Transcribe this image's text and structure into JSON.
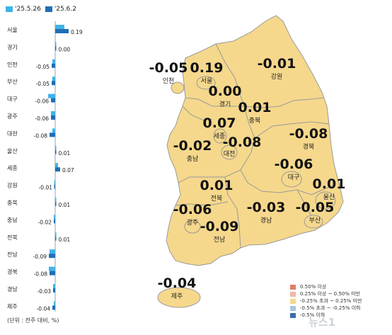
{
  "legend": {
    "series": [
      {
        "label": "'25.5.26",
        "color": "#3fb3e8"
      },
      {
        "label": "'25.6.2",
        "color": "#1f6fb5"
      }
    ]
  },
  "unit_note": "(단위 : 전주 대비, %)",
  "chart_data": {
    "type": "bar",
    "orientation": "horizontal",
    "categories": [
      "서울",
      "경기",
      "인천",
      "부산",
      "대구",
      "광주",
      "대전",
      "울산",
      "세종",
      "강원",
      "충북",
      "충남",
      "전북",
      "전남",
      "경북",
      "경남",
      "제주"
    ],
    "series": [
      {
        "name": "'25.5.26",
        "values": [
          0.13,
          0.0,
          -0.04,
          -0.04,
          -0.1,
          -0.06,
          -0.04,
          0.0,
          0.04,
          -0.01,
          0.0,
          -0.02,
          0.0,
          -0.08,
          -0.09,
          -0.03,
          -0.02
        ]
      },
      {
        "name": "'25.6.2",
        "values": [
          0.19,
          0.0,
          -0.05,
          -0.05,
          -0.06,
          -0.06,
          -0.08,
          0.01,
          0.07,
          -0.01,
          0.01,
          -0.02,
          0.01,
          -0.09,
          -0.08,
          -0.03,
          -0.04
        ]
      }
    ],
    "data_labels": [
      "0.19",
      "0.00",
      "-0.05",
      "-0.05",
      "-0.06",
      "-0.06",
      "-0.08",
      "0.01",
      "0.07",
      "-0.01",
      "0.01",
      "-0.02",
      "0.01",
      "-0.09",
      "-0.08",
      "-0.03",
      "-0.04"
    ]
  },
  "map": {
    "regions": [
      {
        "name": "강원",
        "value": "-0.01"
      },
      {
        "name": "인천",
        "value": "-0.05"
      },
      {
        "name": "서울",
        "value": "0.19"
      },
      {
        "name": "경기",
        "value": "0.00"
      },
      {
        "name": "충북",
        "value": "0.01"
      },
      {
        "name": "세종",
        "value": "0.07"
      },
      {
        "name": "대전",
        "value": "-0.08"
      },
      {
        "name": "충남",
        "value": "-0.02"
      },
      {
        "name": "경북",
        "value": "-0.08"
      },
      {
        "name": "대구",
        "value": "-0.06"
      },
      {
        "name": "전북",
        "value": "0.01"
      },
      {
        "name": "울산",
        "value": "0.01"
      },
      {
        "name": "광주",
        "value": "-0.06"
      },
      {
        "name": "전남",
        "value": "-0.09"
      },
      {
        "name": "경남",
        "value": "-0.03"
      },
      {
        "name": "부산",
        "value": "-0.05"
      },
      {
        "name": "제주",
        "value": "-0.04"
      }
    ],
    "fill_color": "#f5d88c",
    "border_color": "#9a9a9a"
  },
  "map_legend": [
    {
      "label": "0.50% 이상",
      "color": "#e07a6a"
    },
    {
      "label": "0.25% 이상 ~ 0.50% 미만",
      "color": "#f2b8a8"
    },
    {
      "label": "-0.25% 초과 ~ 0.25% 미만",
      "color": "#f5d88c"
    },
    {
      "label": "-0.5% 초과 ~ -0.25% 이하",
      "color": "#a8c4e0"
    },
    {
      "label": "-0.5% 이하",
      "color": "#3a6ea5"
    }
  ],
  "watermark": "뉴스1"
}
